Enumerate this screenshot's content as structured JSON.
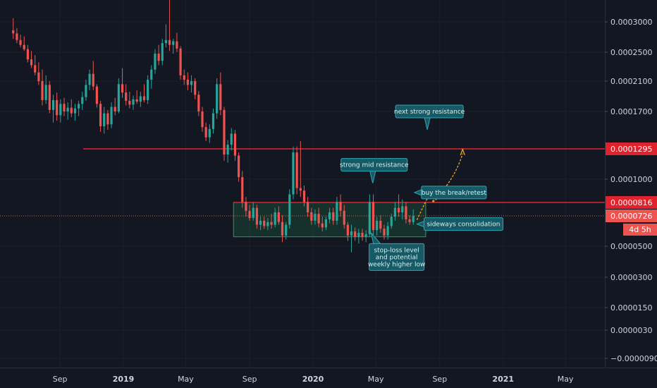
{
  "chart_data": {
    "type": "candlestick",
    "timeframe": "weekly",
    "y_axis": {
      "ticks": [
        "0.0003000",
        "0.0002500",
        "0.0002100",
        "0.0001700",
        "0.0001000",
        "0.0000500",
        "0.0000300",
        "0.0000150",
        "0.0000030",
        "−0.0000090"
      ],
      "tick_values": [
        0.0003,
        0.00025,
        0.00021,
        0.00017,
        0.0001,
        5e-05,
        3e-05,
        1.5e-05,
        3e-06,
        -9e-06
      ]
    },
    "x_axis": {
      "ticks": [
        "Sep",
        "2019",
        "May",
        "Sep",
        "2020",
        "May",
        "Sep",
        "2021",
        "May"
      ],
      "bold": [
        false,
        true,
        false,
        false,
        true,
        false,
        false,
        true,
        false
      ],
      "dates": [
        "2018-09-01",
        "2019-01-01",
        "2019-05-01",
        "2019-09-01",
        "2020-01-01",
        "2020-05-01",
        "2020-09-01",
        "2021-01-01",
        "2021-05-01"
      ]
    },
    "levels": [
      {
        "label": "0.0001295",
        "value": 0.0001295,
        "color": "#e0222e"
      },
      {
        "label": "0.0000816",
        "value": 8.16e-05,
        "color": "#e0222e"
      },
      {
        "label": "0.0000726",
        "value": 7.26e-05,
        "color": "#ef5350"
      }
    ],
    "countdown": "4d 5h",
    "consolidation_zone": {
      "from": "2019-08-01",
      "to": "2020-08-05",
      "top": 8.16e-05,
      "bottom": 5.7e-05
    },
    "annotations": [
      {
        "text": [
          "next strong resistance"
        ],
        "date": "2020-08-08",
        "price": 0.00017
      },
      {
        "text": [
          "strong mid resistance"
        ],
        "date": "2020-04-25",
        "price": 0.000114
      },
      {
        "text": [
          "buy the break/retest"
        ],
        "date": "2020-09-20",
        "price": 8.95e-05
      },
      {
        "text": [
          "sideways consolidation"
        ],
        "date": "2020-09-25",
        "price": 6.65e-05
      },
      {
        "text": [
          "stop-loss level",
          "and potential",
          "weekly higher low"
        ],
        "date": "2020-06-10",
        "price": 4.3e-05
      }
    ],
    "candles": [
      {
        "d": "2018-06-03",
        "o": 0.000286,
        "h": 0.000306,
        "l": 0.000272,
        "c": 0.000281
      },
      {
        "d": "2018-06-10",
        "o": 0.000281,
        "h": 0.00029,
        "l": 0.000265,
        "c": 0.00027
      },
      {
        "d": "2018-06-17",
        "o": 0.00027,
        "h": 0.000279,
        "l": 0.000258,
        "c": 0.000262
      },
      {
        "d": "2018-06-24",
        "o": 0.000262,
        "h": 0.000276,
        "l": 0.000252,
        "c": 0.000255
      },
      {
        "d": "2018-07-01",
        "o": 0.000255,
        "h": 0.000262,
        "l": 0.000236,
        "c": 0.00024
      },
      {
        "d": "2018-07-08",
        "o": 0.00024,
        "h": 0.000252,
        "l": 0.000228,
        "c": 0.000232
      },
      {
        "d": "2018-07-15",
        "o": 0.000232,
        "h": 0.000246,
        "l": 0.000218,
        "c": 0.000222
      },
      {
        "d": "2018-07-22",
        "o": 0.000222,
        "h": 0.000236,
        "l": 0.000205,
        "c": 0.00021
      },
      {
        "d": "2018-07-29",
        "o": 0.00021,
        "h": 0.000226,
        "l": 0.000178,
        "c": 0.000185
      },
      {
        "d": "2018-08-05",
        "o": 0.000185,
        "h": 0.000218,
        "l": 0.00018,
        "c": 0.000205
      },
      {
        "d": "2018-08-12",
        "o": 0.000205,
        "h": 0.00021,
        "l": 0.000168,
        "c": 0.000172
      },
      {
        "d": "2018-08-19",
        "o": 0.000172,
        "h": 0.000192,
        "l": 0.000158,
        "c": 0.000185
      },
      {
        "d": "2018-08-26",
        "o": 0.000185,
        "h": 0.000195,
        "l": 0.00016,
        "c": 0.000166
      },
      {
        "d": "2018-09-02",
        "o": 0.000166,
        "h": 0.000186,
        "l": 0.000158,
        "c": 0.00018
      },
      {
        "d": "2018-09-09",
        "o": 0.00018,
        "h": 0.000188,
        "l": 0.000165,
        "c": 0.00017
      },
      {
        "d": "2018-09-16",
        "o": 0.00017,
        "h": 0.000182,
        "l": 0.000161,
        "c": 0.000175
      },
      {
        "d": "2018-09-23",
        "o": 0.000175,
        "h": 0.000186,
        "l": 0.000164,
        "c": 0.000168
      },
      {
        "d": "2018-09-30",
        "o": 0.000168,
        "h": 0.00018,
        "l": 0.00016,
        "c": 0.000174
      },
      {
        "d": "2018-10-07",
        "o": 0.000174,
        "h": 0.000184,
        "l": 0.000165,
        "c": 0.00018
      },
      {
        "d": "2018-10-14",
        "o": 0.00018,
        "h": 0.000196,
        "l": 0.000172,
        "c": 0.000189
      },
      {
        "d": "2018-10-21",
        "o": 0.000189,
        "h": 0.000212,
        "l": 0.000184,
        "c": 0.000205
      },
      {
        "d": "2018-10-28",
        "o": 0.000205,
        "h": 0.000226,
        "l": 0.000198,
        "c": 0.00022
      },
      {
        "d": "2018-11-04",
        "o": 0.00022,
        "h": 0.000238,
        "l": 0.000198,
        "c": 0.000203
      },
      {
        "d": "2018-11-11",
        "o": 0.000203,
        "h": 0.000206,
        "l": 0.000175,
        "c": 0.00018
      },
      {
        "d": "2018-11-18",
        "o": 0.00018,
        "h": 0.000184,
        "l": 0.000148,
        "c": 0.000154
      },
      {
        "d": "2018-11-25",
        "o": 0.000154,
        "h": 0.000176,
        "l": 0.000146,
        "c": 0.000168
      },
      {
        "d": "2018-12-02",
        "o": 0.000168,
        "h": 0.000172,
        "l": 0.00015,
        "c": 0.000156
      },
      {
        "d": "2018-12-09",
        "o": 0.000156,
        "h": 0.000182,
        "l": 0.000152,
        "c": 0.000176
      },
      {
        "d": "2018-12-16",
        "o": 0.000176,
        "h": 0.000188,
        "l": 0.000166,
        "c": 0.00017
      },
      {
        "d": "2018-12-23",
        "o": 0.00017,
        "h": 0.000214,
        "l": 0.000168,
        "c": 0.000206
      },
      {
        "d": "2018-12-30",
        "o": 0.000206,
        "h": 0.000228,
        "l": 0.000188,
        "c": 0.000195
      },
      {
        "d": "2019-01-06",
        "o": 0.000195,
        "h": 0.000206,
        "l": 0.000178,
        "c": 0.000184
      },
      {
        "d": "2019-01-13",
        "o": 0.000184,
        "h": 0.000196,
        "l": 0.000174,
        "c": 0.000179
      },
      {
        "d": "2019-01-20",
        "o": 0.000179,
        "h": 0.000191,
        "l": 0.000172,
        "c": 0.000186
      },
      {
        "d": "2019-01-27",
        "o": 0.000186,
        "h": 0.000198,
        "l": 0.00018,
        "c": 0.000183
      },
      {
        "d": "2019-02-03",
        "o": 0.000183,
        "h": 0.000196,
        "l": 0.000176,
        "c": 0.00019
      },
      {
        "d": "2019-02-10",
        "o": 0.00019,
        "h": 0.000206,
        "l": 0.000182,
        "c": 0.000185
      },
      {
        "d": "2019-02-17",
        "o": 0.000185,
        "h": 0.000218,
        "l": 0.00018,
        "c": 0.000212
      },
      {
        "d": "2019-02-24",
        "o": 0.000212,
        "h": 0.000232,
        "l": 0.0002,
        "c": 0.000226
      },
      {
        "d": "2019-03-03",
        "o": 0.000226,
        "h": 0.000255,
        "l": 0.00022,
        "c": 0.000248
      },
      {
        "d": "2019-03-10",
        "o": 0.000248,
        "h": 0.000262,
        "l": 0.000232,
        "c": 0.000238
      },
      {
        "d": "2019-03-17",
        "o": 0.000238,
        "h": 0.000272,
        "l": 0.000232,
        "c": 0.000265
      },
      {
        "d": "2019-03-24",
        "o": 0.000265,
        "h": 0.000296,
        "l": 0.000258,
        "c": 0.00027
      },
      {
        "d": "2019-03-31",
        "o": 0.00027,
        "h": 0.00034,
        "l": 0.000252,
        "c": 0.000262
      },
      {
        "d": "2019-04-07",
        "o": 0.000262,
        "h": 0.000272,
        "l": 0.000248,
        "c": 0.000268
      },
      {
        "d": "2019-04-14",
        "o": 0.000268,
        "h": 0.000282,
        "l": 0.00025,
        "c": 0.000256
      },
      {
        "d": "2019-04-21",
        "o": 0.000256,
        "h": 0.00026,
        "l": 0.000212,
        "c": 0.000218
      },
      {
        "d": "2019-04-28",
        "o": 0.000218,
        "h": 0.000226,
        "l": 0.000205,
        "c": 0.000212
      },
      {
        "d": "2019-05-05",
        "o": 0.000212,
        "h": 0.000222,
        "l": 0.000198,
        "c": 0.000205
      },
      {
        "d": "2019-05-12",
        "o": 0.000205,
        "h": 0.000218,
        "l": 0.000195,
        "c": 0.00021
      },
      {
        "d": "2019-05-19",
        "o": 0.00021,
        "h": 0.000214,
        "l": 0.000186,
        "c": 0.000192
      },
      {
        "d": "2019-05-26",
        "o": 0.000192,
        "h": 0.000197,
        "l": 0.000165,
        "c": 0.00017
      },
      {
        "d": "2019-06-02",
        "o": 0.00017,
        "h": 0.000176,
        "l": 0.000148,
        "c": 0.000153
      },
      {
        "d": "2019-06-09",
        "o": 0.000153,
        "h": 0.000158,
        "l": 0.000138,
        "c": 0.000142
      },
      {
        "d": "2019-06-16",
        "o": 0.000142,
        "h": 0.000156,
        "l": 0.000136,
        "c": 0.000151
      },
      {
        "d": "2019-06-23",
        "o": 0.000151,
        "h": 0.000174,
        "l": 0.000146,
        "c": 0.000168
      },
      {
        "d": "2019-06-30",
        "o": 0.000168,
        "h": 0.000214,
        "l": 0.000162,
        "c": 0.000206
      },
      {
        "d": "2019-07-07",
        "o": 0.000206,
        "h": 0.000222,
        "l": 0.000166,
        "c": 0.000172
      },
      {
        "d": "2019-07-14",
        "o": 0.000172,
        "h": 0.000176,
        "l": 0.000118,
        "c": 0.000124
      },
      {
        "d": "2019-07-21",
        "o": 0.000124,
        "h": 0.000139,
        "l": 0.000116,
        "c": 0.000134
      },
      {
        "d": "2019-07-28",
        "o": 0.000134,
        "h": 0.000152,
        "l": 0.000128,
        "c": 0.000146
      },
      {
        "d": "2019-08-04",
        "o": 0.000146,
        "h": 0.00015,
        "l": 0.000118,
        "c": 0.000123
      },
      {
        "d": "2019-08-11",
        "o": 0.000123,
        "h": 0.000126,
        "l": 9.8e-05,
        "c": 0.000102
      },
      {
        "d": "2019-08-18",
        "o": 0.000102,
        "h": 0.000108,
        "l": 7.8e-05,
        "c": 8.2e-05
      },
      {
        "d": "2019-08-25",
        "o": 8.2e-05,
        "h": 8.6e-05,
        "l": 7.2e-05,
        "c": 7.6e-05
      },
      {
        "d": "2019-09-01",
        "o": 7.6e-05,
        "h": 8e-05,
        "l": 6.9e-05,
        "c": 7.1e-05
      },
      {
        "d": "2019-09-08",
        "o": 7.1e-05,
        "h": 8.2e-05,
        "l": 6.9e-05,
        "c": 7.8e-05
      },
      {
        "d": "2019-09-15",
        "o": 7.8e-05,
        "h": 8e-05,
        "l": 6.3e-05,
        "c": 6.6e-05
      },
      {
        "d": "2019-09-22",
        "o": 6.6e-05,
        "h": 7.2e-05,
        "l": 6.2e-05,
        "c": 6.9e-05
      },
      {
        "d": "2019-09-29",
        "o": 6.9e-05,
        "h": 7.2e-05,
        "l": 6.3e-05,
        "c": 6.5e-05
      },
      {
        "d": "2019-10-06",
        "o": 6.5e-05,
        "h": 7.1e-05,
        "l": 6.2e-05,
        "c": 6.8e-05
      },
      {
        "d": "2019-10-13",
        "o": 6.8e-05,
        "h": 7.4e-05,
        "l": 6.3e-05,
        "c": 6.6e-05
      },
      {
        "d": "2019-10-20",
        "o": 6.6e-05,
        "h": 7.8e-05,
        "l": 6.4e-05,
        "c": 7.5e-05
      },
      {
        "d": "2019-10-27",
        "o": 7.5e-05,
        "h": 7.9e-05,
        "l": 6.6e-05,
        "c": 6.8e-05
      },
      {
        "d": "2019-11-03",
        "o": 6.8e-05,
        "h": 7.3e-05,
        "l": 5.3e-05,
        "c": 5.8e-05
      },
      {
        "d": "2019-11-10",
        "o": 5.8e-05,
        "h": 6.8e-05,
        "l": 5.5e-05,
        "c": 6.6e-05
      },
      {
        "d": "2019-11-17",
        "o": 6.6e-05,
        "h": 9.2e-05,
        "l": 6.3e-05,
        "c": 8.8e-05
      },
      {
        "d": "2019-11-24",
        "o": 8.8e-05,
        "h": 0.000132,
        "l": 8.4e-05,
        "c": 0.000126
      },
      {
        "d": "2019-12-01",
        "o": 0.000126,
        "h": 0.000132,
        "l": 8.8e-05,
        "c": 9.3e-05
      },
      {
        "d": "2019-12-08",
        "o": 9.3e-05,
        "h": 0.000138,
        "l": 8.6e-05,
        "c": 9.1e-05
      },
      {
        "d": "2019-12-15",
        "o": 9.1e-05,
        "h": 9.5e-05,
        "l": 7.9e-05,
        "c": 8.2e-05
      },
      {
        "d": "2019-12-22",
        "o": 8.2e-05,
        "h": 8.6e-05,
        "l": 7.2e-05,
        "c": 7.5e-05
      },
      {
        "d": "2019-12-29",
        "o": 7.5e-05,
        "h": 7.8e-05,
        "l": 6.6e-05,
        "c": 6.9e-05
      },
      {
        "d": "2020-01-05",
        "o": 6.9e-05,
        "h": 7.7e-05,
        "l": 6.6e-05,
        "c": 7.4e-05
      },
      {
        "d": "2020-01-12",
        "o": 7.4e-05,
        "h": 7.8e-05,
        "l": 6.4e-05,
        "c": 6.7e-05
      },
      {
        "d": "2020-01-19",
        "o": 6.7e-05,
        "h": 7.2e-05,
        "l": 6.1e-05,
        "c": 6.4e-05
      },
      {
        "d": "2020-01-26",
        "o": 6.4e-05,
        "h": 7.2e-05,
        "l": 6.2e-05,
        "c": 7e-05
      },
      {
        "d": "2020-02-02",
        "o": 7e-05,
        "h": 7.8e-05,
        "l": 6.7e-05,
        "c": 7.5e-05
      },
      {
        "d": "2020-02-09",
        "o": 7.5e-05,
        "h": 7.8e-05,
        "l": 6.6e-05,
        "c": 6.9e-05
      },
      {
        "d": "2020-02-16",
        "o": 6.9e-05,
        "h": 8.6e-05,
        "l": 6.6e-05,
        "c": 8.2e-05
      },
      {
        "d": "2020-02-23",
        "o": 8.2e-05,
        "h": 8.8e-05,
        "l": 7.2e-05,
        "c": 7.6e-05
      },
      {
        "d": "2020-03-01",
        "o": 7.6e-05,
        "h": 8e-05,
        "l": 6.3e-05,
        "c": 6.6e-05
      },
      {
        "d": "2020-03-08",
        "o": 6.6e-05,
        "h": 6.8e-05,
        "l": 5.4e-05,
        "c": 5.8e-05
      },
      {
        "d": "2020-03-15",
        "o": 5.8e-05,
        "h": 6.6e-05,
        "l": 4.6e-05,
        "c": 6.1e-05
      },
      {
        "d": "2020-03-22",
        "o": 6.1e-05,
        "h": 6.4e-05,
        "l": 5.4e-05,
        "c": 5.7e-05
      },
      {
        "d": "2020-03-29",
        "o": 5.7e-05,
        "h": 6.3e-05,
        "l": 5.2e-05,
        "c": 6e-05
      },
      {
        "d": "2020-04-05",
        "o": 6e-05,
        "h": 6.3e-05,
        "l": 5.4e-05,
        "c": 5.7e-05
      },
      {
        "d": "2020-04-12",
        "o": 5.7e-05,
        "h": 6.2e-05,
        "l": 5.3e-05,
        "c": 5.9e-05
      },
      {
        "d": "2020-04-19",
        "o": 5.9e-05,
        "h": 8.8e-05,
        "l": 5.7e-05,
        "c": 8.2e-05
      },
      {
        "d": "2020-04-26",
        "o": 8.2e-05,
        "h": 8.8e-05,
        "l": 5.8e-05,
        "c": 6.2e-05
      },
      {
        "d": "2020-05-03",
        "o": 6.2e-05,
        "h": 7.2e-05,
        "l": 5.8e-05,
        "c": 6.9e-05
      },
      {
        "d": "2020-05-10",
        "o": 6.9e-05,
        "h": 7.3e-05,
        "l": 6e-05,
        "c": 6.3e-05
      },
      {
        "d": "2020-05-17",
        "o": 6.3e-05,
        "h": 6.6e-05,
        "l": 5.5e-05,
        "c": 5.8e-05
      },
      {
        "d": "2020-05-24",
        "o": 5.8e-05,
        "h": 6.8e-05,
        "l": 5.5e-05,
        "c": 6.5e-05
      },
      {
        "d": "2020-05-31",
        "o": 6.5e-05,
        "h": 7.4e-05,
        "l": 6.3e-05,
        "c": 7.2e-05
      },
      {
        "d": "2020-06-07",
        "o": 7.2e-05,
        "h": 8.2e-05,
        "l": 6.9e-05,
        "c": 7.8e-05
      },
      {
        "d": "2020-06-14",
        "o": 7.8e-05,
        "h": 8.8e-05,
        "l": 7.2e-05,
        "c": 7.5e-05
      },
      {
        "d": "2020-06-21",
        "o": 7.5e-05,
        "h": 8.4e-05,
        "l": 7e-05,
        "c": 7.9e-05
      },
      {
        "d": "2020-06-28",
        "o": 7.9e-05,
        "h": 8.2e-05,
        "l": 6.7e-05,
        "c": 7e-05
      },
      {
        "d": "2020-07-05",
        "o": 7e-05,
        "h": 7.3e-05,
        "l": 6.6e-05,
        "c": 6.8e-05
      },
      {
        "d": "2020-07-12",
        "o": 6.8e-05,
        "h": 7.7e-05,
        "l": 6.6e-05,
        "c": 7.26e-05
      }
    ]
  }
}
